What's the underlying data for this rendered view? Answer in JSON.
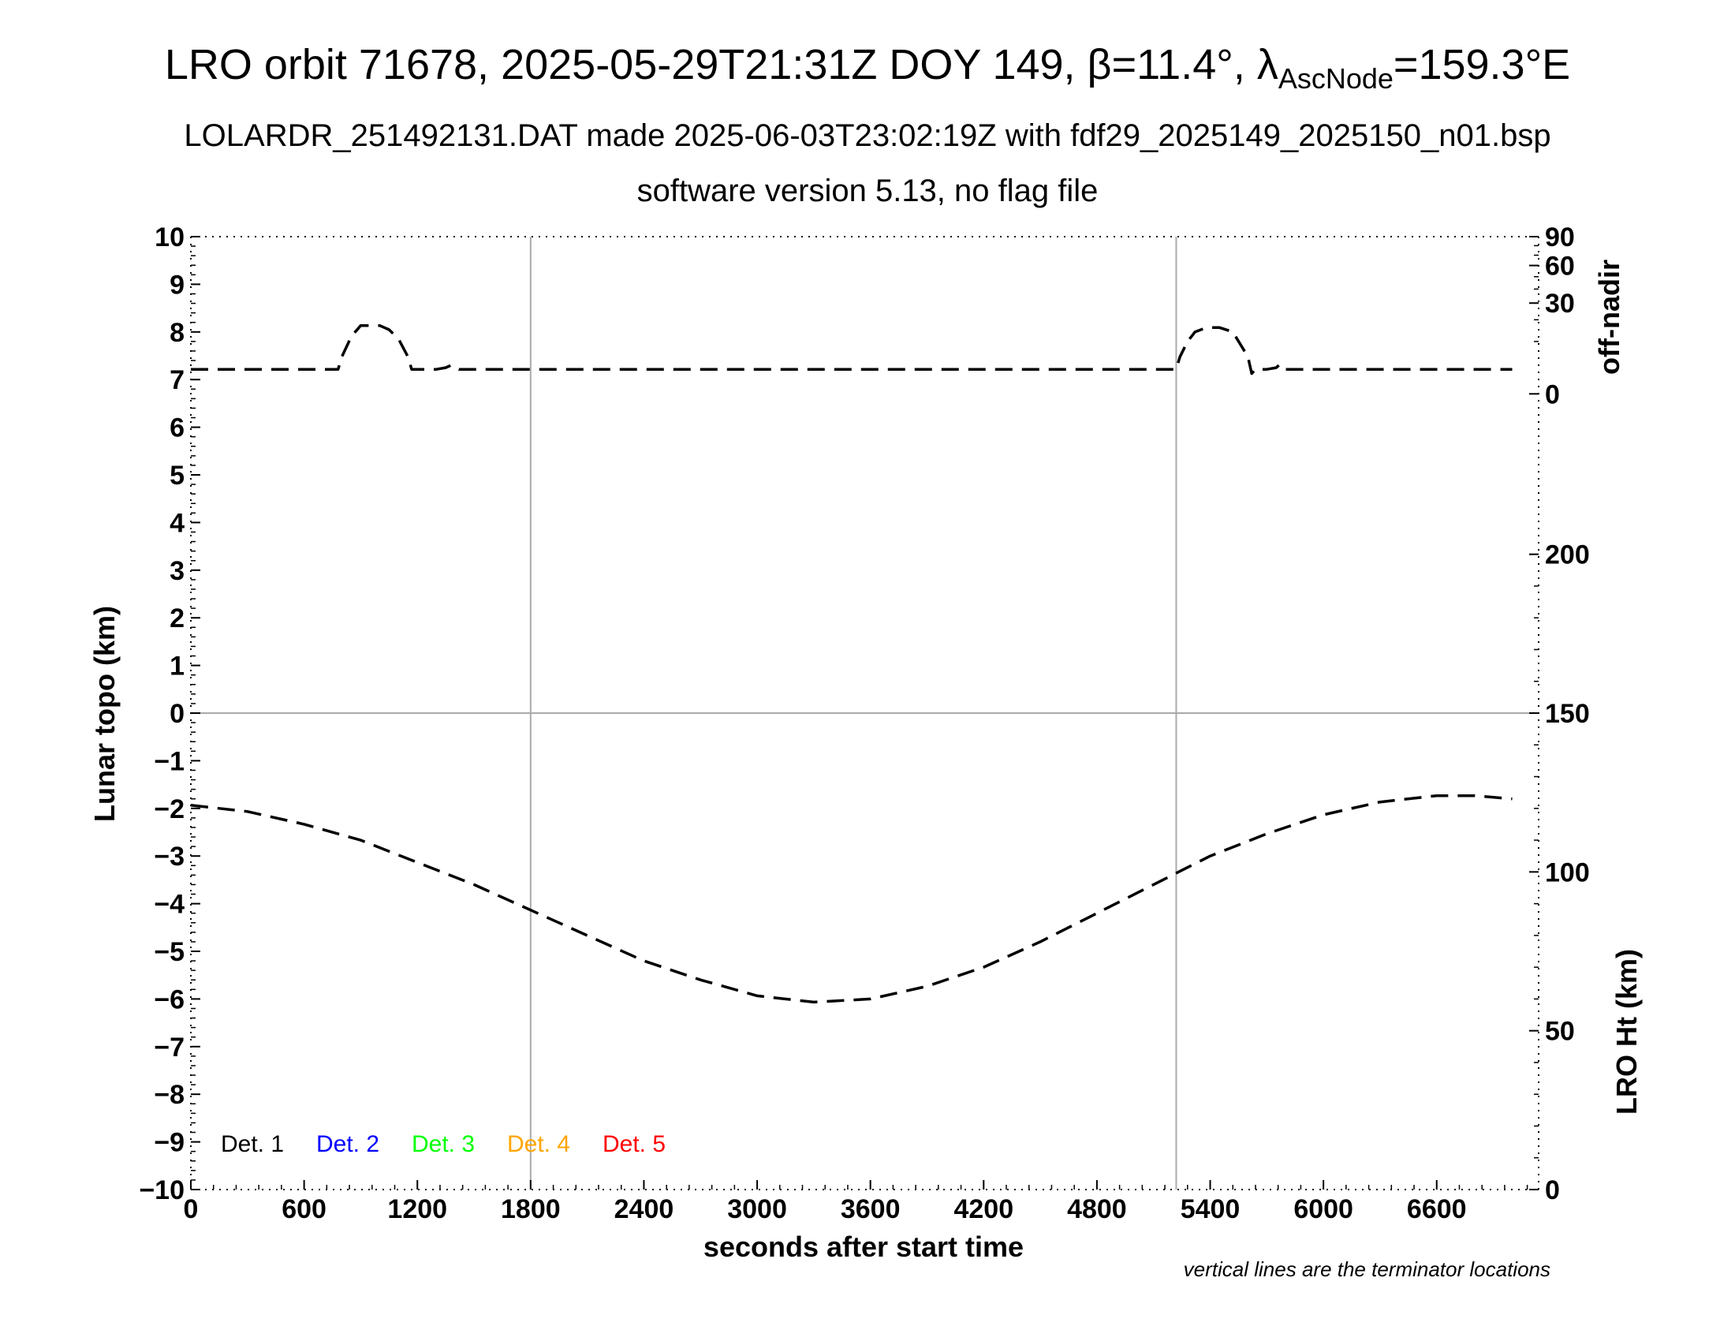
{
  "header": {
    "title_main": "LRO orbit 71678, 2025-05-29T21:31Z DOY 149, β=11.4°, λ",
    "title_sub": "AscNode",
    "title_end": "=159.3°E",
    "subtitle": "LOLARDR_251492131.DAT made 2025-06-03T23:02:19Z with fdf29_2025149_2025150_n01.bsp",
    "subtitle2": "software version 5.13, no flag file"
  },
  "footer": {
    "note": "vertical lines are the terminator locations"
  },
  "colors": {
    "det1": "#000000",
    "det2": "#0000ff",
    "det3": "#00ff00",
    "det4": "#ffa500",
    "det5": "#ff0000",
    "grid": "#aaaaaa"
  },
  "chart_data": {
    "type": "line",
    "xlabel": "seconds after start time",
    "ylabel_left": "Lunar topo (km)",
    "ylabel_right_top": "off-nadir",
    "ylabel_right_bottom": "LRO Ht (km)",
    "xlim": [
      0,
      7140
    ],
    "ylim_left": [
      -10,
      10
    ],
    "x_ticks": [
      0,
      600,
      1200,
      1800,
      2400,
      3000,
      3600,
      4200,
      4800,
      5400,
      6000,
      6600
    ],
    "y_ticks_left": [
      10,
      9,
      8,
      7,
      6,
      5,
      4,
      3,
      2,
      1,
      0,
      -1,
      -2,
      -3,
      -4,
      -5,
      -6,
      -7,
      -8,
      -9,
      -10
    ],
    "y_tick_labels_left": [
      "10",
      "9",
      "8",
      "7",
      "6",
      "5",
      "4",
      "3",
      "2",
      "1",
      "0",
      "−1",
      "−2",
      "−3",
      "−4",
      "−5",
      "−6",
      "−7",
      "−8",
      "−9",
      "−10"
    ],
    "off_nadir_axis": {
      "ticks": [
        0,
        30,
        60,
        90
      ],
      "range_left_units": [
        6.7,
        10
      ],
      "scale": "sqrt"
    },
    "height_axis": {
      "ticks": [
        0,
        50,
        100,
        150,
        200
      ],
      "range_km": [
        0,
        300
      ]
    },
    "terminators_x": [
      1800,
      5220
    ],
    "zero_line": true,
    "legend": [
      "Det. 1",
      "Det. 2",
      "Det. 3",
      "Det. 4",
      "Det. 5"
    ],
    "legend_colors": [
      "#000000",
      "#0000ff",
      "#00ff00",
      "#ffa500",
      "#ff0000"
    ],
    "series": [
      {
        "axis": "off-nadir",
        "x": [
          0,
          780,
          800,
          850,
          900,
          1000,
          1050,
          1100,
          1150,
          1170,
          1300,
          1350,
          1380,
          1420,
          5220,
          5240,
          5280,
          5320,
          5380,
          5450,
          5520,
          5600,
          5620,
          5640,
          5700,
          5750,
          5770,
          5800,
          7000
        ],
        "y": [
          2.2,
          2.2,
          5,
          12,
          17,
          17,
          15,
          11,
          5,
          2.2,
          2.2,
          2.5,
          3,
          2.2,
          2.2,
          5,
          10,
          14,
          16,
          16,
          14,
          5,
          1.5,
          2.2,
          2.2,
          2.5,
          3.2,
          2.2,
          2.2
        ]
      },
      {
        "axis": "LRO Ht (km)",
        "x": [
          0,
          300,
          600,
          900,
          1200,
          1500,
          1800,
          2100,
          2400,
          2700,
          3000,
          3300,
          3600,
          3900,
          4200,
          4500,
          4800,
          5100,
          5400,
          5700,
          6000,
          6300,
          6600,
          6800,
          7000
        ],
        "y": [
          121,
          119,
          115,
          110,
          103,
          96,
          88,
          80,
          72,
          66,
          61,
          59,
          60,
          64,
          70,
          78,
          87,
          96,
          105,
          112,
          118,
          122,
          124,
          124,
          123
        ]
      }
    ]
  }
}
